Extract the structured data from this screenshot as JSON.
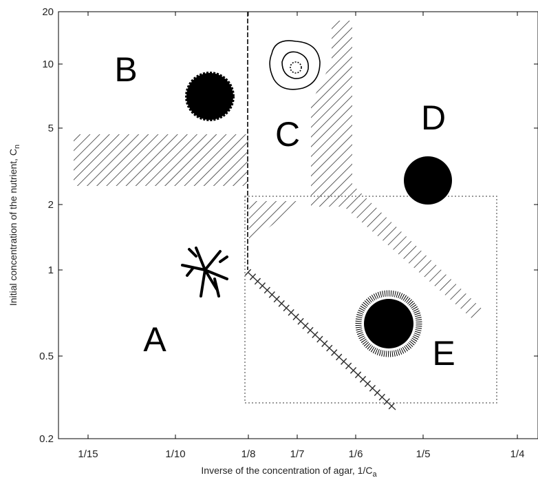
{
  "chart_data": {
    "type": "phase-diagram",
    "x_label": {
      "text": "Inverse of the concentration of agar, 1/C",
      "subscript": "a"
    },
    "y_label": {
      "text": "Initial concentration of the nutrient, C",
      "subscript": "n"
    },
    "y_log_scale": true,
    "ylim": [
      0.2,
      20
    ],
    "yticks": [
      0.2,
      0.5,
      1,
      2,
      5,
      10,
      20
    ],
    "xticks": [
      {
        "value": 0.0667,
        "label": "1/15"
      },
      {
        "value": 0.1,
        "label": "1/10"
      },
      {
        "value": 0.125,
        "label": "1/8"
      },
      {
        "value": 0.1429,
        "label": "1/7"
      },
      {
        "value": 0.1667,
        "label": "1/6"
      },
      {
        "value": 0.2,
        "label": "1/5"
      },
      {
        "value": 0.25,
        "label": "1/4"
      }
    ],
    "regions": [
      "A",
      "B",
      "C",
      "D",
      "E"
    ]
  }
}
